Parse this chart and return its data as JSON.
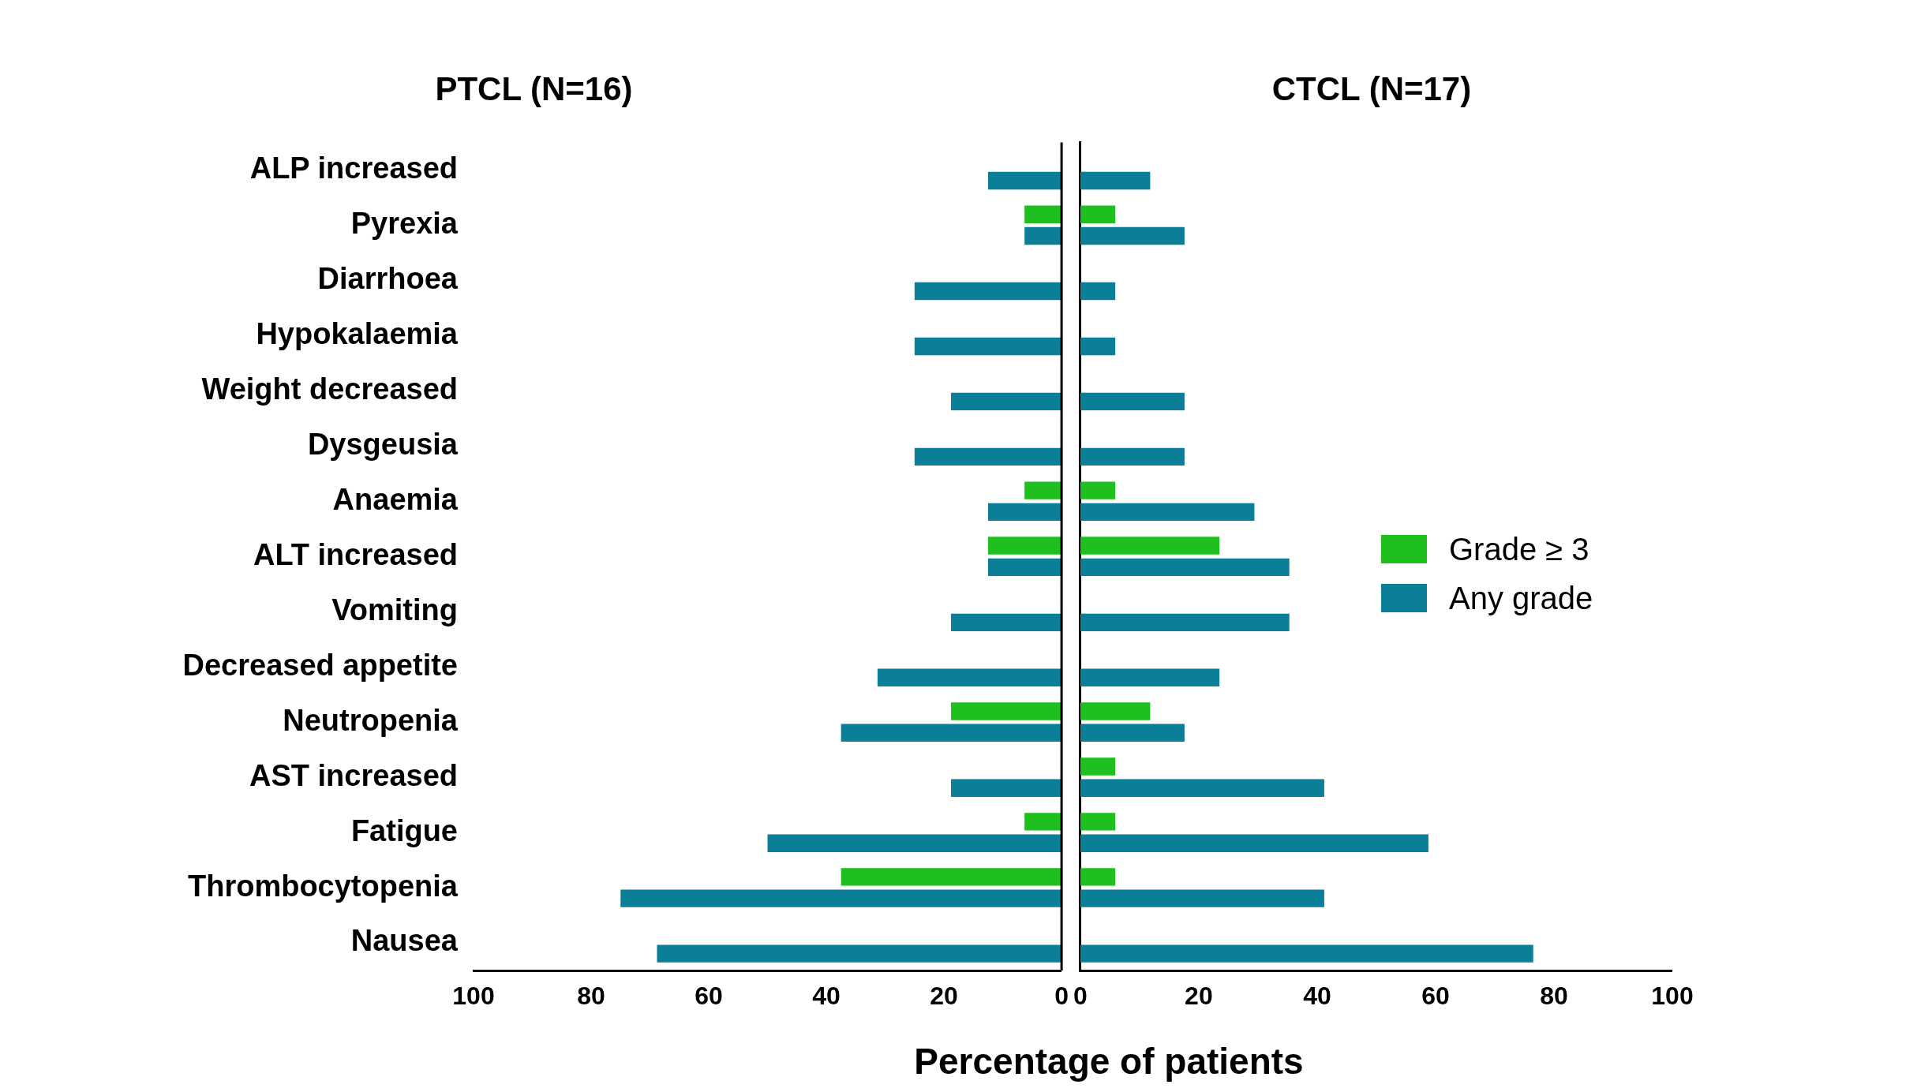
{
  "chart_data": [
    {
      "type": "bar",
      "orientation": "horizontal",
      "title": "PTCL (N=16)",
      "xlabel": "Percentage of patients",
      "categories": [
        "ALP increased",
        "Pyrexia",
        "Diarrhoea",
        "Hypokalaemia",
        "Weight decreased",
        "Dysgeusia",
        "Anaemia",
        "ALT increased",
        "Vomiting",
        "Decreased appetite",
        "Neutropenia",
        "AST increased",
        "Fatigue",
        "Thrombocytopenia",
        "Nausea"
      ],
      "series": [
        {
          "color": "#1fbf1f",
          "values": [
            0,
            6.3,
            0,
            0,
            0,
            0,
            6.3,
            12.5,
            0,
            0,
            18.8,
            0,
            6.3,
            37.5,
            0
          ]
        },
        {
          "color": "#0b7f98",
          "values": [
            12.5,
            6.3,
            25,
            25,
            18.8,
            25,
            12.5,
            12.5,
            18.8,
            31.3,
            37.5,
            18.8,
            50,
            75,
            68.8
          ]
        }
      ],
      "xlim": [
        100,
        0
      ],
      "xticks": [
        100,
        80,
        60,
        40,
        20,
        0
      ],
      "grid": false,
      "legend": false
    },
    {
      "type": "bar",
      "orientation": "horizontal",
      "title": "CTCL (N=17)",
      "categories": [
        null,
        null,
        null,
        null,
        null,
        null,
        null,
        null,
        null,
        null,
        null,
        null,
        null,
        null,
        null
      ],
      "series": [
        {
          "name": "Grade ≥ 3",
          "color": "#1fbf1f",
          "values": [
            0,
            5.9,
            0,
            0,
            0,
            0,
            5.9,
            23.5,
            0,
            0,
            11.8,
            5.9,
            5.9,
            5.9,
            0
          ]
        },
        {
          "name": "Any grade",
          "color": "#0b7f98",
          "values": [
            11.8,
            17.6,
            5.9,
            5.9,
            17.6,
            17.6,
            29.4,
            35.3,
            35.3,
            23.5,
            17.6,
            41.2,
            58.8,
            41.2,
            76.5
          ]
        }
      ],
      "xlim": [
        0,
        100
      ],
      "xticks": [
        0,
        20,
        40,
        60,
        80,
        100
      ],
      "grid": false,
      "legend": "right",
      "tick_labels": "x"
    }
  ]
}
